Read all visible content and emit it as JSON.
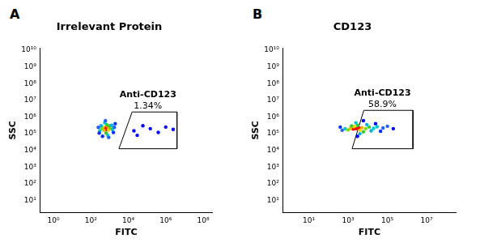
{
  "chart_data": [
    {
      "type": "scatter",
      "panel": "A",
      "title": "Irrelevant Protein",
      "x_label": "FITC",
      "y_label": "SSC",
      "log": true,
      "grid": false,
      "xlim": [
        0.2,
        300000000
      ],
      "ylim": [
        2,
        13000000000
      ],
      "xticks": [
        {
          "value": 1,
          "label": "10⁰"
        },
        {
          "value": 100,
          "label": "10²"
        },
        {
          "value": 10000,
          "label": "10⁴"
        },
        {
          "value": 1000000,
          "label": "10⁶"
        },
        {
          "value": 100000000,
          "label": "10⁸"
        }
      ],
      "yticks": [
        {
          "value": 10,
          "label": "10¹"
        },
        {
          "value": 100,
          "label": "10²"
        },
        {
          "value": 1000,
          "label": "10³"
        },
        {
          "value": 10000,
          "label": "10⁴"
        },
        {
          "value": 100000,
          "label": "10⁵"
        },
        {
          "value": 1000000,
          "label": "10⁶"
        },
        {
          "value": 10000000,
          "label": "10⁷"
        },
        {
          "value": 100000000,
          "label": "10⁸"
        },
        {
          "value": 1000000000,
          "label": "10⁹"
        },
        {
          "value": 10000000000,
          "label": "10¹⁰"
        }
      ],
      "x": [
        630,
        700,
        560,
        800,
        500,
        900,
        450,
        1100,
        380,
        700,
        650,
        1000,
        1400,
        300,
        550,
        800,
        1300,
        350,
        1800,
        250,
        600,
        900,
        1600,
        280,
        2000,
        420,
        20000,
        60000,
        150000,
        400000,
        1000000,
        2500000,
        30000
      ],
      "values": [
        200000,
        180000,
        220000,
        250000,
        160000,
        170000,
        260000,
        220000,
        200000,
        350000,
        110000,
        300000,
        180000,
        150000,
        450000,
        80000,
        320000,
        300000,
        240000,
        240000,
        600000,
        60000,
        120000,
        110000,
        400000,
        70000,
        150000,
        300000,
        200000,
        120000,
        250000,
        180000,
        80000
      ],
      "colors": [
        "#ff0000",
        "#ff0000",
        "#ff0000",
        "#ff8c00",
        "#ffb000",
        "#ffd000",
        "#ffd000",
        "#7fdc00",
        "#7fdc00",
        "#33cc33",
        "#33cc33",
        "#33cc33",
        "#00c8c8",
        "#00c8c8",
        "#00c8c8",
        "#00c8c8",
        "#00b0e0",
        "#00b0e0",
        "#2060ff",
        "#2060ff",
        "#2060ff",
        "#2060ff",
        "#0030ff",
        "#0030ff",
        "#0030ff",
        "#0030ff",
        "#0000ff",
        "#0000ff",
        "#0000ff",
        "#0000ff",
        "#0000ff",
        "#0000ff",
        "#0000ff"
      ],
      "gate": {
        "label": "Anti-CD123",
        "text": "1.34%",
        "x": [
          3162,
          16000,
          4000000,
          4000000
        ],
        "y": [
          12600,
          2000000,
          2000000,
          12600
        ]
      }
    },
    {
      "type": "scatter",
      "panel": "B",
      "title": "CD123",
      "x_label": "FITC",
      "y_label": "SSC",
      "log": true,
      "grid": false,
      "xlim": [
        0.5,
        300000000
      ],
      "ylim": [
        2,
        13000000000
      ],
      "xticks": [
        {
          "value": 10,
          "label": "10¹"
        },
        {
          "value": 1000,
          "label": "10³"
        },
        {
          "value": 100000,
          "label": "10⁵"
        },
        {
          "value": 10000000,
          "label": "10⁷"
        }
      ],
      "yticks": [
        {
          "value": 10,
          "label": "10¹"
        },
        {
          "value": 100,
          "label": "10²"
        },
        {
          "value": 1000,
          "label": "10³"
        },
        {
          "value": 10000,
          "label": "10⁴"
        },
        {
          "value": 100000,
          "label": "10⁵"
        },
        {
          "value": 1000000,
          "label": "10⁶"
        },
        {
          "value": 10000000,
          "label": "10⁷"
        },
        {
          "value": 100000000,
          "label": "10⁸"
        },
        {
          "value": 1000000000,
          "label": "10⁹"
        },
        {
          "value": 10000000000,
          "label": "10¹⁰"
        }
      ],
      "x": [
        2500,
        3500,
        1800,
        5000,
        1300,
        4000,
        2000,
        8000,
        1000,
        3000,
        12000,
        6000,
        1500,
        20000,
        700,
        30000,
        2500,
        9000,
        4000,
        15000,
        60000,
        500,
        100000,
        400,
        45000,
        200000,
        3000,
        6000,
        25000
      ],
      "values": [
        200000,
        220000,
        190000,
        230000,
        210000,
        160000,
        270000,
        200000,
        170000,
        320000,
        250000,
        130000,
        290000,
        210000,
        200000,
        260000,
        450000,
        350000,
        100000,
        150000,
        220000,
        160000,
        280000,
        250000,
        140000,
        200000,
        70000,
        600000,
        400000
      ],
      "colors": [
        "#ff0000",
        "#ff0000",
        "#ff0000",
        "#ffb000",
        "#ffb000",
        "#ffd000",
        "#ffd000",
        "#7fdc00",
        "#7fdc00",
        "#33cc33",
        "#33cc33",
        "#33cc33",
        "#33cc33",
        "#00c8c8",
        "#00c8c8",
        "#00c8c8",
        "#00c8c8",
        "#00b0e0",
        "#00b0e0",
        "#00b0e0",
        "#2060ff",
        "#2060ff",
        "#2060ff",
        "#0030ff",
        "#0030ff",
        "#0000ff",
        "#0000ff",
        "#0000ff",
        "#0000ff"
      ],
      "gate": {
        "label": "Anti-CD123",
        "text": "58.9%",
        "x": [
          1600,
          6300,
          2000000,
          2000000
        ],
        "y": [
          12600,
          2500000,
          2500000,
          12600
        ]
      }
    }
  ]
}
